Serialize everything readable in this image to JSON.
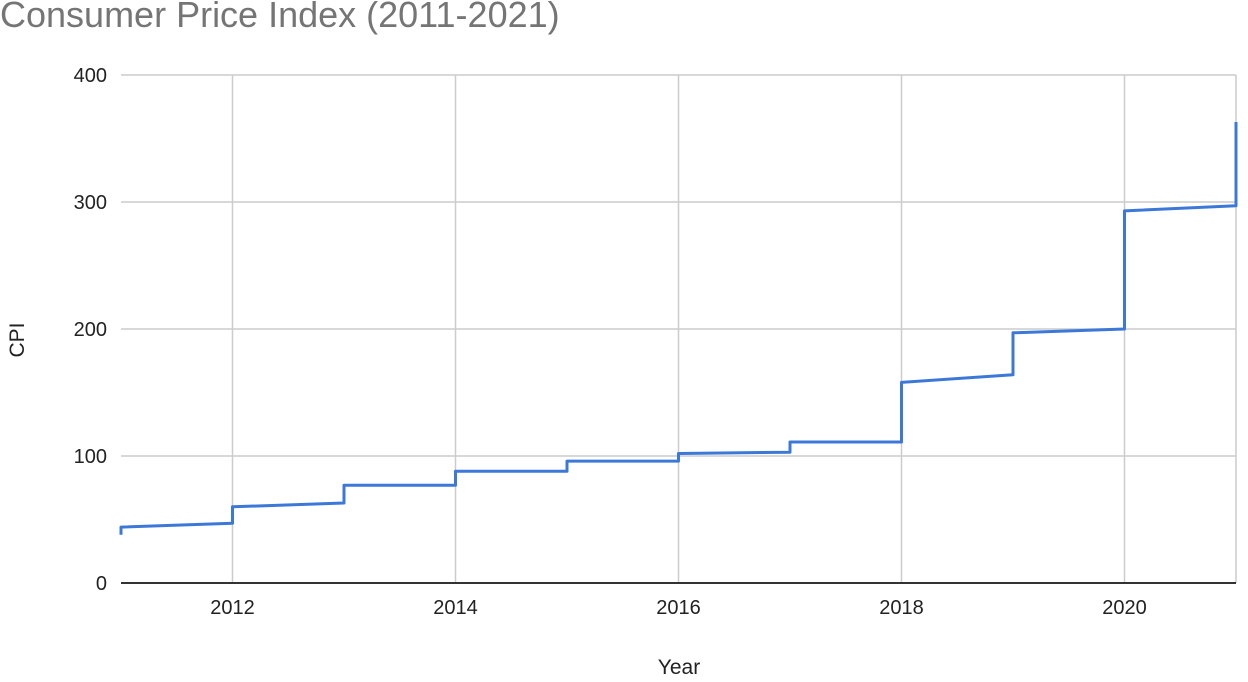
{
  "chart_data": {
    "type": "line",
    "title": "Consumer Price Index (2011-2021)",
    "xlabel": "Year",
    "ylabel": "CPI",
    "xlim": [
      2011,
      2021
    ],
    "ylim": [
      0,
      400
    ],
    "x_ticks": [
      2012,
      2014,
      2016,
      2018,
      2020
    ],
    "y_ticks": [
      0,
      100,
      200,
      300,
      400
    ],
    "grid": true,
    "line_color": "#3c78d8",
    "series": [
      {
        "x": [
          2011,
          2011,
          2012,
          2012,
          2013,
          2013,
          2014,
          2014,
          2015,
          2015,
          2016,
          2016,
          2017,
          2017,
          2018,
          2018,
          2019,
          2019,
          2020,
          2020,
          2021,
          2021
        ],
        "values": [
          38,
          44,
          47,
          60,
          63,
          77,
          77,
          88,
          88,
          96,
          96,
          102,
          103,
          111,
          111,
          158,
          164,
          197,
          200,
          293,
          297,
          363
        ]
      }
    ]
  }
}
